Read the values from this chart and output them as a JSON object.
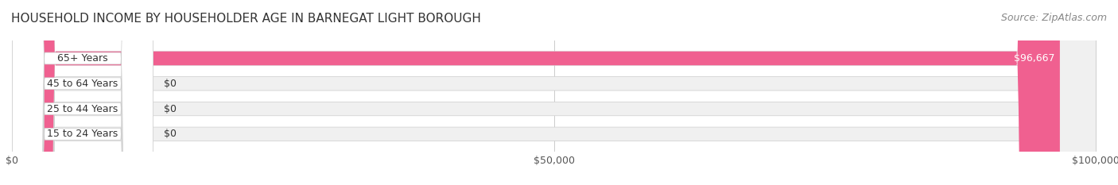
{
  "title": "HOUSEHOLD INCOME BY HOUSEHOLDER AGE IN BARNEGAT LIGHT BOROUGH",
  "source": "Source: ZipAtlas.com",
  "categories": [
    "15 to 24 Years",
    "25 to 44 Years",
    "45 to 64 Years",
    "65+ Years"
  ],
  "values": [
    0,
    0,
    0,
    96667
  ],
  "max_value": 100000,
  "bar_colors": [
    "#d4a0c8",
    "#7ecece",
    "#a0a0d4",
    "#f06090"
  ],
  "bar_bg_color": "#f0f0f0",
  "label_colors": [
    "#555555",
    "#555555",
    "#555555",
    "#ffffff"
  ],
  "label_texts": [
    "$0",
    "$0",
    "$0",
    "$96,667"
  ],
  "xtick_labels": [
    "$0",
    "$50,000",
    "$100,000"
  ],
  "xtick_values": [
    0,
    50000,
    100000
  ],
  "background_color": "#ffffff",
  "bar_height": 0.55,
  "title_fontsize": 11,
  "source_fontsize": 9,
  "label_fontsize": 9,
  "category_fontsize": 9,
  "xtick_fontsize": 9
}
